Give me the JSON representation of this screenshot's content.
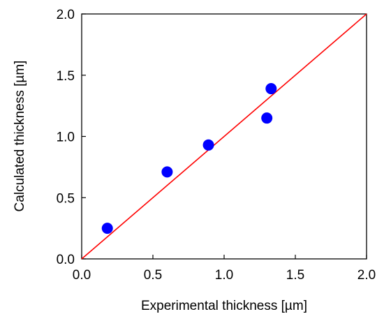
{
  "chart_data": {
    "type": "scatter",
    "title": "",
    "xlabel": "Experimental thickness [µm]",
    "ylabel": "Calculated thickness [µm]",
    "xlim": [
      0.0,
      2.0
    ],
    "ylim": [
      0.0,
      2.0
    ],
    "x_ticks": [
      "0.0",
      "0.5",
      "1.0",
      "1.5",
      "2.0"
    ],
    "y_ticks": [
      "0.0",
      "0.5",
      "1.0",
      "1.5",
      "2.0"
    ],
    "grid": false,
    "legend": "none",
    "series": [
      {
        "x": [
          0.18,
          0.6,
          0.89,
          1.3,
          1.33
        ],
        "y": [
          0.25,
          0.71,
          0.93,
          1.15,
          1.39
        ],
        "color": "#0000ff",
        "marker": "circle"
      }
    ],
    "reference_line": {
      "x": [
        0.0,
        2.0
      ],
      "y": [
        0.0,
        2.0
      ],
      "color": "#ff0000"
    }
  }
}
